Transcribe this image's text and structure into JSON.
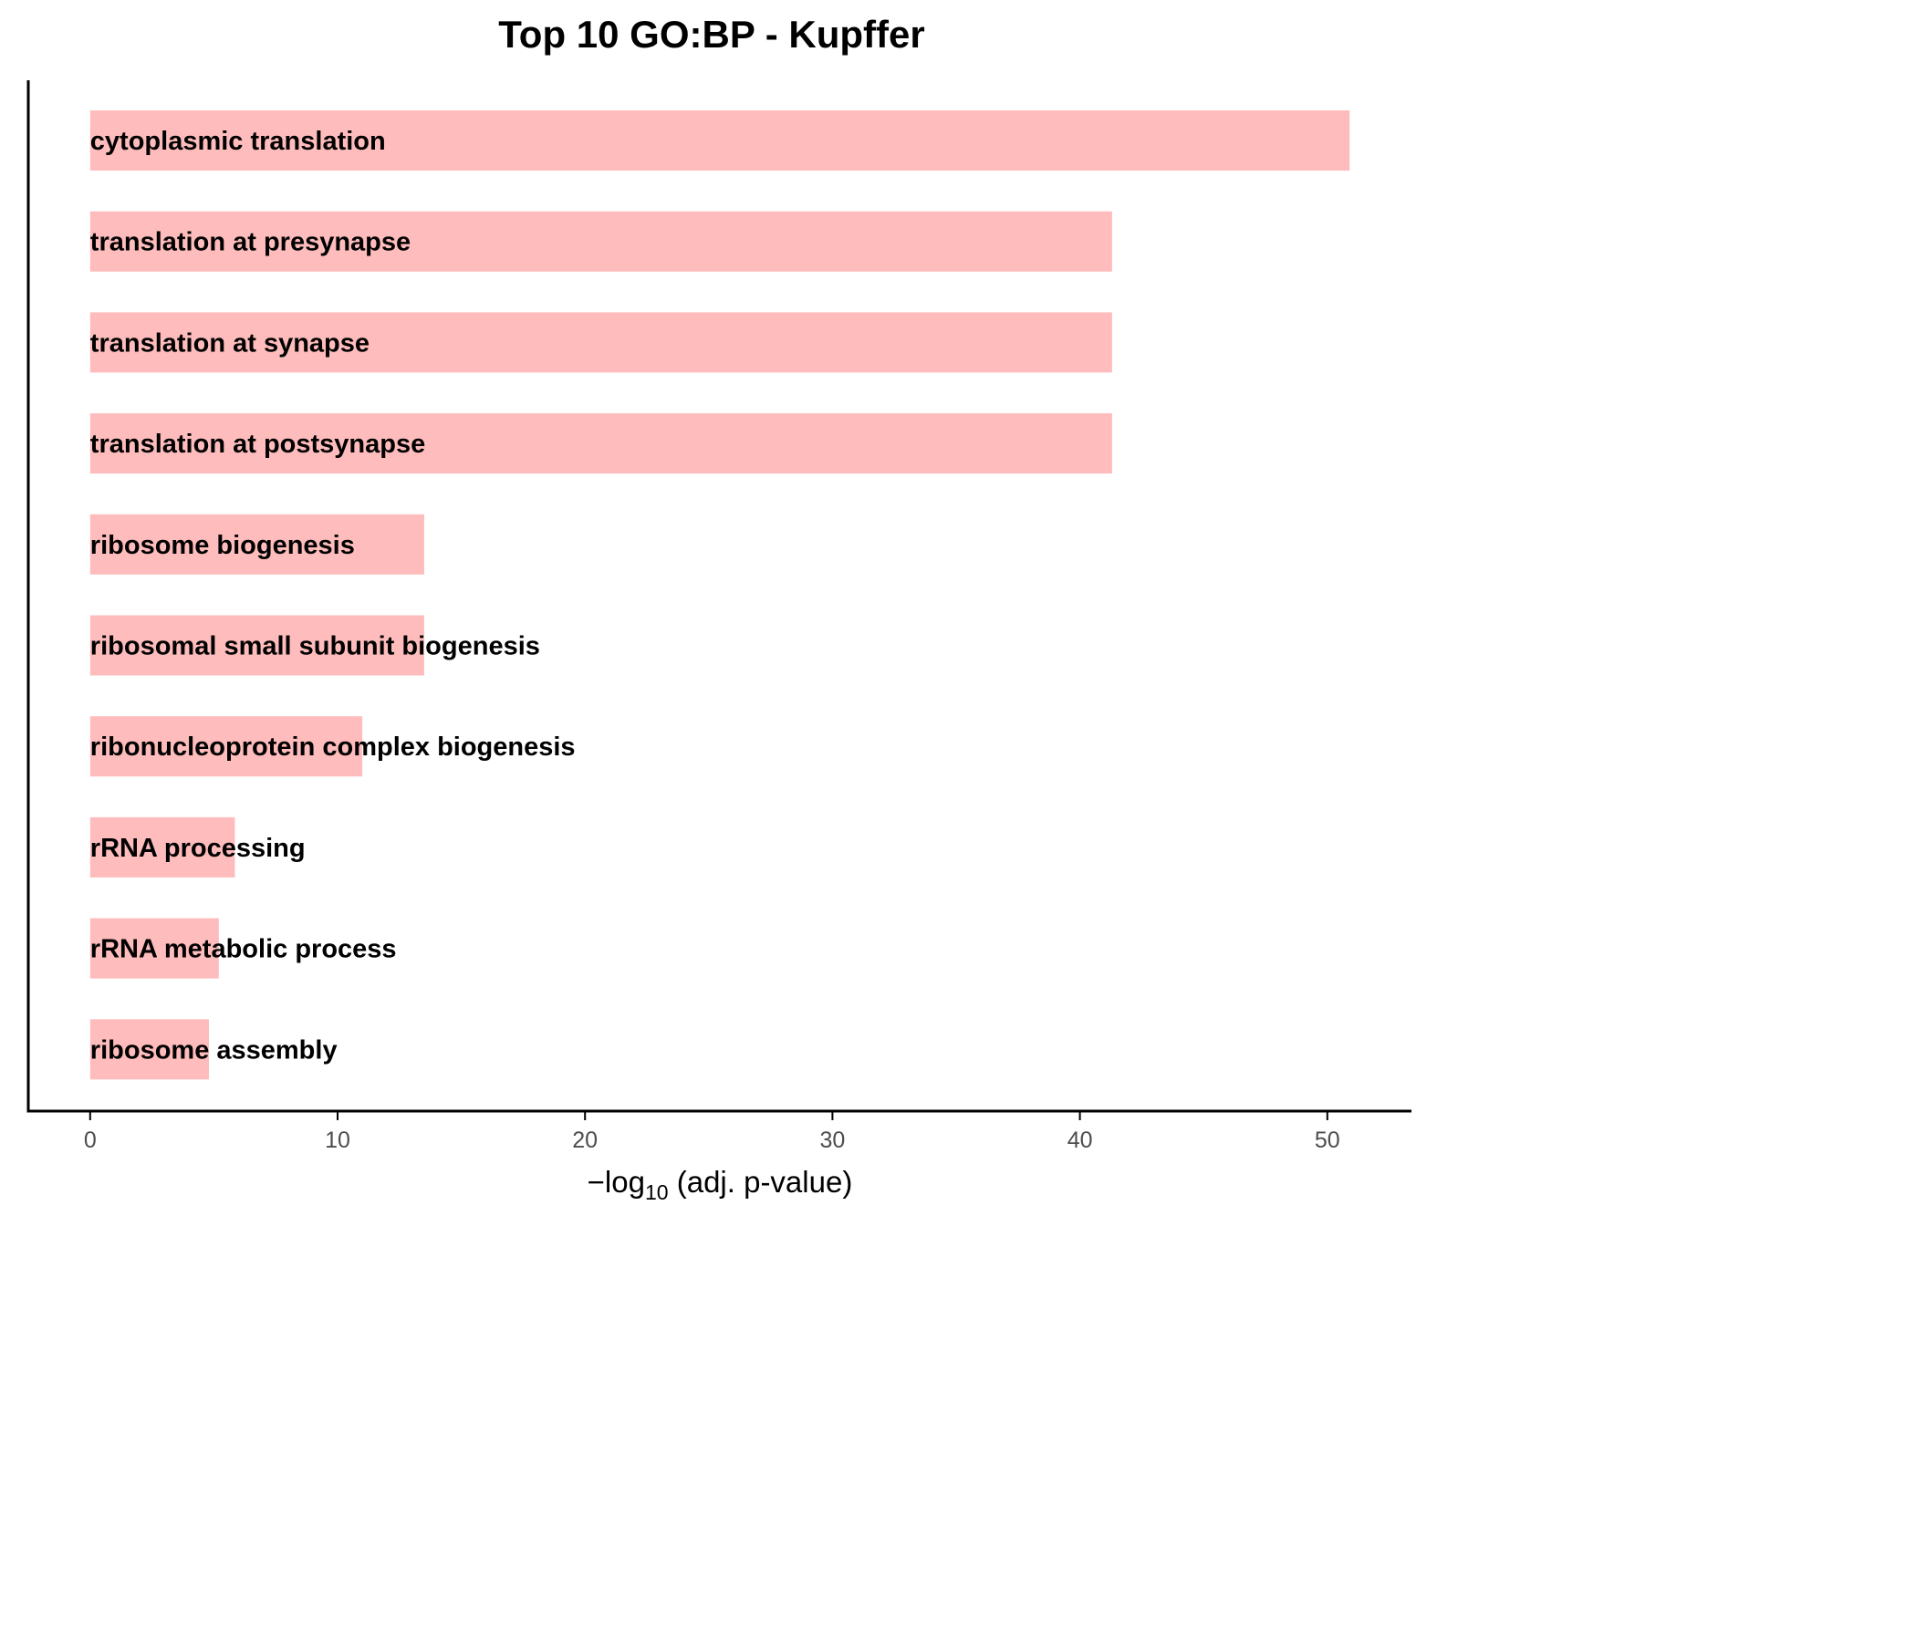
{
  "chart_data": {
    "type": "bar",
    "orientation": "horizontal",
    "title": "Top 10 GO:BP - Kupffer",
    "xlabel": {
      "prefix": "−log",
      "subscript": "10",
      "suffix": " (adj. p-value)"
    },
    "ylabel": "",
    "categories": [
      "cytoplasmic translation",
      "translation at presynapse",
      "translation at synapse",
      "translation at postsynapse",
      "ribosome biogenesis",
      "ribosomal small subunit biogenesis",
      "ribonucleoprotein complex biogenesis",
      "rRNA processing",
      "rRNA metabolic process",
      "ribosome assembly"
    ],
    "values": [
      50.9,
      41.3,
      41.3,
      41.3,
      13.5,
      13.5,
      11.0,
      5.85,
      5.2,
      4.8
    ],
    "xlim": [
      -2.5,
      53.4
    ],
    "xticks": [
      0,
      10,
      20,
      30,
      40,
      50
    ],
    "grid": false,
    "legend": "none",
    "bar_color": "#ffbcbc",
    "axis_color": "#000000",
    "tick_label_color": "#4d4d4d"
  }
}
